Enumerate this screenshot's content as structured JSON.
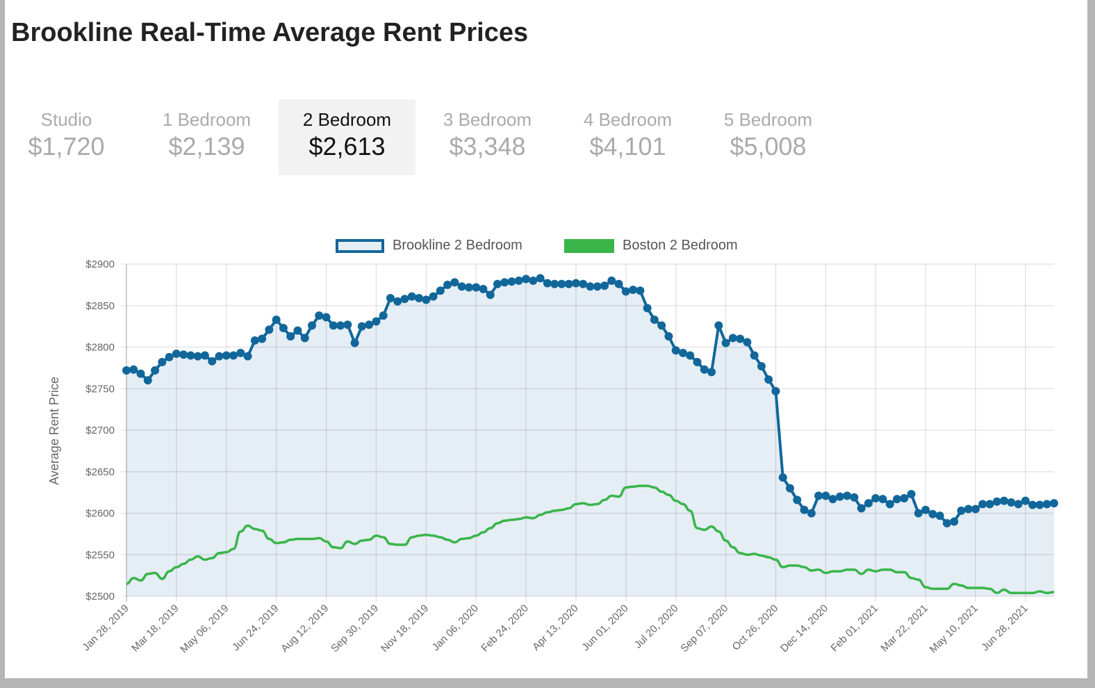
{
  "title": "Brookline Real-Time Average Rent Prices",
  "tabs": [
    {
      "label": "Studio",
      "value": "$1,720",
      "active": false
    },
    {
      "label": "1 Bedroom",
      "value": "$2,139",
      "active": false
    },
    {
      "label": "2 Bedroom",
      "value": "$2,613",
      "active": true
    },
    {
      "label": "3 Bedroom",
      "value": "$3,348",
      "active": false
    },
    {
      "label": "4 Bedroom",
      "value": "$4,101",
      "active": false
    },
    {
      "label": "5 Bedroom",
      "value": "$5,008",
      "active": false
    }
  ],
  "colors": {
    "brookline": "#12679a",
    "brookline_fill": "#e5edf5",
    "boston": "#39b54a",
    "grid": "#e0e0e0"
  },
  "chart_data": {
    "type": "line",
    "title": "",
    "xlabel": "",
    "ylabel": "Average Rent Price",
    "ylim": [
      2500,
      2900
    ],
    "yticks": [
      2500,
      2550,
      2600,
      2650,
      2700,
      2750,
      2800,
      2850,
      2900
    ],
    "ytick_labels": [
      "$2500",
      "$2550",
      "$2600",
      "$2650",
      "$2700",
      "$2750",
      "$2800",
      "$2850",
      "$2900"
    ],
    "x_start": "Jan 28, 2019",
    "x_interval": "weekly",
    "xtick_labels": [
      "Jan 28, 2019",
      "Mar 18, 2019",
      "May 06, 2019",
      "Jun 24, 2019",
      "Aug 12, 2019",
      "Sep 30, 2019",
      "Nov 18, 2019",
      "Jan 06, 2020",
      "Feb 24, 2020",
      "Apr 13, 2020",
      "Jun 01, 2020",
      "Jul 20, 2020",
      "Sep 07, 2020",
      "Oct 26, 2020",
      "Dec 14, 2020",
      "Feb 01, 2021",
      "Mar 22, 2021",
      "May 10, 2021",
      "Jun 28, 2021"
    ],
    "xtick_every_weeks": 7,
    "legend": "top-center",
    "grid": true,
    "series": [
      {
        "name": "Brookline 2 Bedroom",
        "style": "line-markers-filled",
        "values": [
          2772,
          2773,
          2768,
          2760,
          2772,
          2782,
          2788,
          2792,
          2791,
          2790,
          2789,
          2790,
          2783,
          2789,
          2790,
          2790,
          2793,
          2789,
          2808,
          2810,
          2821,
          2833,
          2823,
          2813,
          2820,
          2811,
          2826,
          2838,
          2836,
          2826,
          2826,
          2827,
          2805,
          2825,
          2827,
          2831,
          2838,
          2859,
          2855,
          2858,
          2861,
          2859,
          2857,
          2861,
          2868,
          2875,
          2878,
          2873,
          2872,
          2872,
          2870,
          2863,
          2876,
          2878,
          2879,
          2880,
          2882,
          2880,
          2883,
          2877,
          2876,
          2876,
          2876,
          2877,
          2876,
          2873,
          2873,
          2874,
          2880,
          2876,
          2867,
          2869,
          2868,
          2847,
          2833,
          2826,
          2813,
          2796,
          2793,
          2790,
          2782,
          2773,
          2770,
          2826,
          2805,
          2811,
          2810,
          2806,
          2790,
          2777,
          2761,
          2747,
          2643,
          2630,
          2616,
          2604,
          2600,
          2621,
          2621,
          2617,
          2620,
          2621,
          2619,
          2606,
          2612,
          2618,
          2617,
          2611,
          2617,
          2618,
          2623,
          2600,
          2604,
          2599,
          2597,
          2588,
          2590,
          2603,
          2605,
          2605,
          2611,
          2611,
          2614,
          2615,
          2613,
          2611,
          2615,
          2610,
          2610,
          2611,
          2612
        ]
      },
      {
        "name": "Boston 2 Bedroom",
        "style": "smooth-line",
        "values": [
          2515,
          2522,
          2519,
          2527,
          2528,
          2521,
          2530,
          2535,
          2539,
          2544,
          2548,
          2544,
          2546,
          2552,
          2553,
          2557,
          2578,
          2585,
          2581,
          2579,
          2569,
          2564,
          2565,
          2568,
          2569,
          2569,
          2569,
          2570,
          2566,
          2559,
          2558,
          2566,
          2563,
          2567,
          2568,
          2573,
          2571,
          2563,
          2562,
          2562,
          2571,
          2573,
          2574,
          2573,
          2571,
          2568,
          2565,
          2569,
          2570,
          2573,
          2577,
          2582,
          2588,
          2591,
          2592,
          2593,
          2595,
          2594,
          2598,
          2601,
          2603,
          2604,
          2606,
          2611,
          2612,
          2610,
          2611,
          2616,
          2621,
          2620,
          2631,
          2632,
          2633,
          2633,
          2631,
          2626,
          2622,
          2615,
          2611,
          2603,
          2582,
          2580,
          2584,
          2578,
          2567,
          2559,
          2552,
          2550,
          2551,
          2549,
          2547,
          2544,
          2535,
          2537,
          2537,
          2535,
          2531,
          2532,
          2528,
          2530,
          2530,
          2532,
          2532,
          2527,
          2532,
          2530,
          2532,
          2532,
          2529,
          2529,
          2522,
          2520,
          2511,
          2509,
          2509,
          2509,
          2515,
          2513,
          2510,
          2510,
          2510,
          2509,
          2504,
          2508,
          2504,
          2504,
          2504,
          2504,
          2506,
          2504,
          2505
        ]
      }
    ]
  }
}
